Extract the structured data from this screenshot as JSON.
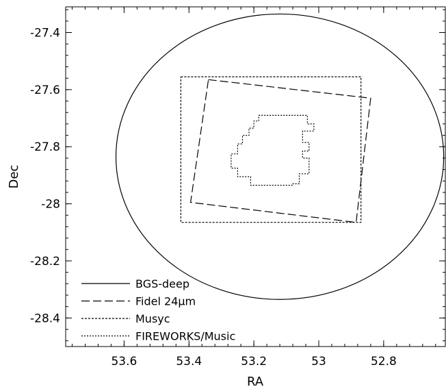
{
  "chart_data": {
    "type": "line",
    "xlabel": "RA",
    "ylabel": "Dec",
    "xlim": [
      53.78,
      52.61
    ],
    "ylim": [
      -28.5,
      -27.31
    ],
    "x_inverted": true,
    "x_ticks": [
      53.6,
      53.4,
      53.2,
      53.0,
      52.8
    ],
    "x_tick_labels": [
      "53.6",
      "53.4",
      "53.2",
      "53",
      "52.8"
    ],
    "y_ticks": [
      -27.4,
      -27.6,
      -27.8,
      -28.0,
      -28.2,
      -28.4
    ],
    "y_tick_labels": [
      "-27.4",
      "-27.6",
      "-27.8",
      "-28",
      "-28.2",
      "-28.4"
    ],
    "grid": false,
    "legend_position": "bottom-left",
    "series": [
      {
        "name": "BGS-deep",
        "style": "solid",
        "shape": "ellipse",
        "center": [
          53.12,
          -27.835
        ],
        "radius_ra": 0.505,
        "radius_dec": 0.5
      },
      {
        "name": "Fidel 24µm",
        "style": "dashed",
        "x": [
          53.34,
          52.84,
          52.885,
          53.395,
          53.34
        ],
        "y": [
          -27.565,
          -27.63,
          -28.065,
          -27.995,
          -27.565
        ]
      },
      {
        "name": "Musyc",
        "style": "dotted-dense",
        "x": [
          53.425,
          52.87,
          52.87,
          53.425,
          53.425
        ],
        "y": [
          -27.555,
          -27.555,
          -28.065,
          -28.065,
          -27.555
        ]
      },
      {
        "name": "FIREWORKS/Music",
        "style": "dotted",
        "x": [
          53.185,
          53.035,
          53.035,
          53.015,
          53.015,
          53.05,
          53.05,
          53.03,
          53.03,
          53.05,
          53.05,
          53.03,
          53.03,
          53.06,
          53.06,
          53.08,
          53.08,
          53.21,
          53.21,
          53.25,
          53.25,
          53.27,
          53.27,
          53.25,
          53.25,
          53.235,
          53.235,
          53.215,
          53.215,
          53.2,
          53.2,
          53.185,
          53.185
        ],
        "y": [
          -27.69,
          -27.69,
          -27.72,
          -27.72,
          -27.745,
          -27.745,
          -27.785,
          -27.785,
          -27.815,
          -27.815,
          -27.84,
          -27.84,
          -27.895,
          -27.895,
          -27.93,
          -27.93,
          -27.935,
          -27.935,
          -27.905,
          -27.905,
          -27.875,
          -27.875,
          -27.825,
          -27.825,
          -27.79,
          -27.79,
          -27.76,
          -27.76,
          -27.735,
          -27.735,
          -27.71,
          -27.71,
          -27.69
        ]
      }
    ]
  }
}
